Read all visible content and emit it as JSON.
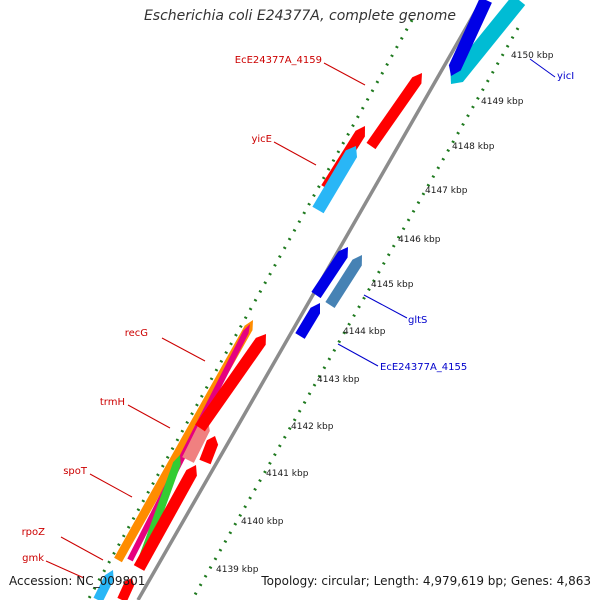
{
  "title": "Escherichia coli E24377A, complete genome",
  "footer": {
    "accession": "Accession: NC_009801",
    "topology": "Topology: circular; Length: 4,979,619 bp; Genes: 4,863"
  },
  "colors": {
    "backbone": "#8c8c8c",
    "tick_green": "#1f7a1f",
    "label_red": "#cc0000",
    "label_blue": "#0000cc"
  },
  "kbp_ticks": [
    "4150 kbp",
    "4149 kbp",
    "4148 kbp",
    "4147 kbp",
    "4146 kbp",
    "4145 kbp",
    "4144 kbp",
    "4143 kbp",
    "4142 kbp",
    "4141 kbp",
    "4140 kbp",
    "4139 kbp"
  ],
  "gene_labels": [
    {
      "text": "EcE24377A_4159",
      "color": "red"
    },
    {
      "text": "yicE",
      "color": "red"
    },
    {
      "text": "recG",
      "color": "red"
    },
    {
      "text": "trmH",
      "color": "red"
    },
    {
      "text": "spoT",
      "color": "red"
    },
    {
      "text": "rpoZ",
      "color": "red"
    },
    {
      "text": "gmk",
      "color": "red"
    },
    {
      "text": "yicI",
      "color": "blue"
    },
    {
      "text": "gltS",
      "color": "blue"
    },
    {
      "text": "EcE24377A_4155",
      "color": "blue"
    }
  ]
}
